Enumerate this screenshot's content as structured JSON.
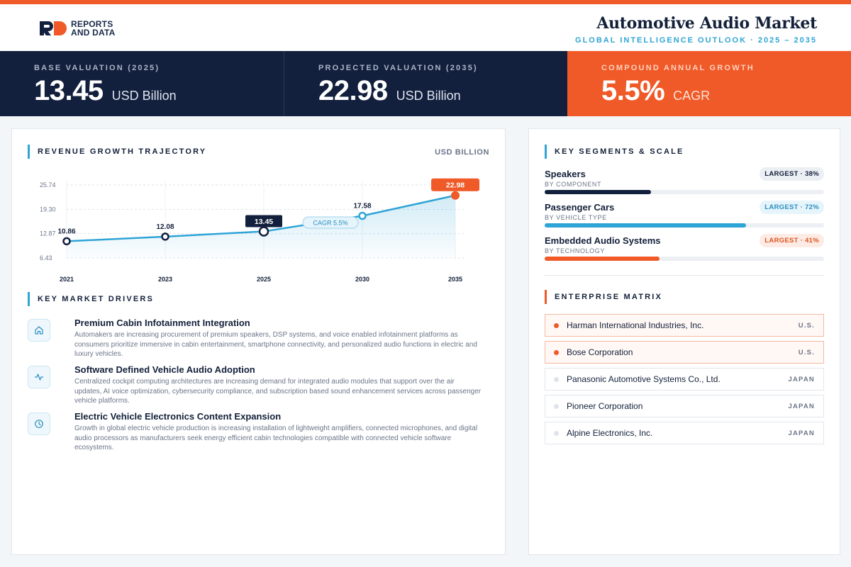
{
  "header": {
    "logo_line1": "REPORTS",
    "logo_line2": "AND DATA",
    "title": "Automotive Audio Market",
    "subtitle": "GLOBAL INTELLIGENCE OUTLOOK  ·  2025 – 2035"
  },
  "kpis": [
    {
      "label": "BASE VALUATION (2025)",
      "value": "13.45",
      "unit": "USD Billion"
    },
    {
      "label": "PROJECTED VALUATION (2035)",
      "value": "22.98",
      "unit": "USD Billion"
    },
    {
      "label": "COMPOUND ANNUAL GROWTH",
      "value": "5.5%",
      "unit": "CAGR"
    }
  ],
  "colors": {
    "navy": "#13203d",
    "orange": "#f05a28",
    "blue": "#2fa4d6"
  },
  "chart_section": {
    "title": "REVENUE GROWTH TRAJECTORY",
    "unit": "USD BILLION",
    "cagr_tag": "CAGR 5.5%"
  },
  "chart_data": {
    "type": "line",
    "categories": [
      "2021",
      "2023",
      "2025",
      "2030",
      "2035"
    ],
    "values": [
      10.86,
      12.08,
      13.45,
      17.58,
      22.98
    ],
    "data_labels": [
      "10.86",
      "12.08",
      "13.45",
      "17.58",
      "22.98"
    ],
    "y_ticks": [
      "25.74",
      "19.30",
      "12.87",
      "6.43"
    ],
    "ylim": [
      6.43,
      25.74
    ],
    "grid": true,
    "area_fill": true
  },
  "drivers_section": {
    "title": "KEY MARKET DRIVERS",
    "items": [
      {
        "icon": "home-icon",
        "title": "Premium Cabin Infotainment Integration",
        "desc": "Automakers are increasing procurement of premium speakers, DSP systems, and voice enabled infotainment platforms as consumers prioritize immersive in cabin entertainment, smartphone connectivity, and personalized audio functions in electric and luxury vehicles."
      },
      {
        "icon": "activity-icon",
        "title": "Software Defined Vehicle Audio Adoption",
        "desc": "Centralized cockpit computing architectures are increasing demand for integrated audio modules that support over the air updates, AI voice optimization, cybersecurity compliance, and subscription based sound enhancement services across passenger vehicle platforms."
      },
      {
        "icon": "clock-icon",
        "title": "Electric Vehicle Electronics Content Expansion",
        "desc": "Growth in global electric vehicle production is increasing installation of lightweight amplifiers, connected microphones, and digital audio processors as manufacturers seek energy efficient cabin technologies compatible with connected vehicle software ecosystems."
      }
    ]
  },
  "segments_section": {
    "title": "KEY SEGMENTS & SCALE",
    "items": [
      {
        "name": "Speakers",
        "category": "BY COMPONENT",
        "badge": "LARGEST · 38%",
        "share": 0.38,
        "color": "#13203d",
        "tone": "navy"
      },
      {
        "name": "Passenger Cars",
        "category": "BY VEHICLE TYPE",
        "badge": "LARGEST · 72%",
        "share": 0.72,
        "color": "#2fa4d6",
        "tone": "blue"
      },
      {
        "name": "Embedded Audio Systems",
        "category": "BY TECHNOLOGY",
        "badge": "LARGEST · 41%",
        "share": 0.41,
        "color": "#f05a28",
        "tone": "orange"
      }
    ]
  },
  "matrix_section": {
    "title": "ENTERPRISE MATRIX",
    "items": [
      {
        "name": "Harman International Industries, Inc.",
        "country": "U.S.",
        "highlight": true
      },
      {
        "name": "Bose Corporation",
        "country": "U.S.",
        "highlight": true
      },
      {
        "name": "Panasonic Automotive Systems Co., Ltd.",
        "country": "JAPAN",
        "highlight": false
      },
      {
        "name": "Pioneer Corporation",
        "country": "JAPAN",
        "highlight": false
      },
      {
        "name": "Alpine Electronics, Inc.",
        "country": "JAPAN",
        "highlight": false
      }
    ]
  }
}
